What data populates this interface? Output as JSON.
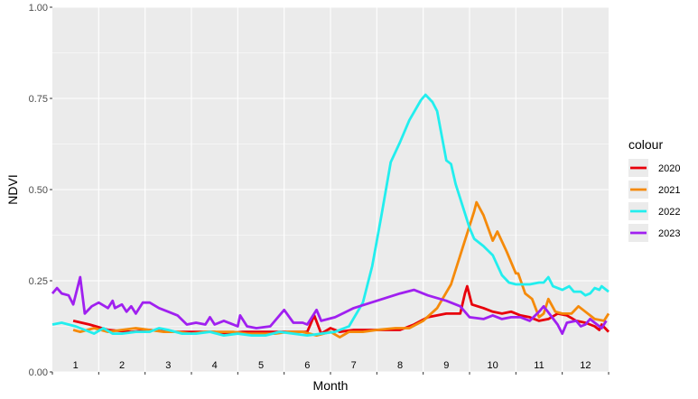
{
  "chart_data": {
    "type": "line",
    "xlabel": "Month",
    "ylabel": "NDVI",
    "ylim": [
      0,
      1
    ],
    "xlim": [
      0.5,
      12.5
    ],
    "x_ticks": [
      "1",
      "2",
      "3",
      "4",
      "5",
      "6",
      "7",
      "8",
      "9",
      "10",
      "11",
      "12"
    ],
    "y_ticks": [
      "0.00",
      "0.25",
      "0.50",
      "0.75",
      "1.00"
    ],
    "y_tick_values": [
      0,
      0.25,
      0.5,
      0.75,
      1.0
    ],
    "grid": true,
    "legend": {
      "title": "colour",
      "placement": "right"
    },
    "series": [
      {
        "name": "2020",
        "color": "#e8000b",
        "points": [
          [
            0.95,
            0.14
          ],
          [
            1.3,
            0.13
          ],
          [
            1.7,
            0.115
          ],
          [
            2.2,
            0.11
          ],
          [
            2.6,
            0.115
          ],
          [
            3.0,
            0.11
          ],
          [
            3.5,
            0.11
          ],
          [
            4.0,
            0.11
          ],
          [
            4.2,
            0.105
          ],
          [
            4.6,
            0.11
          ],
          [
            5.0,
            0.11
          ],
          [
            5.5,
            0.11
          ],
          [
            6.0,
            0.11
          ],
          [
            6.15,
            0.155
          ],
          [
            6.3,
            0.105
          ],
          [
            6.5,
            0.12
          ],
          [
            6.7,
            0.11
          ],
          [
            7.0,
            0.115
          ],
          [
            7.5,
            0.115
          ],
          [
            8.0,
            0.115
          ],
          [
            8.3,
            0.13
          ],
          [
            8.6,
            0.15
          ],
          [
            9.0,
            0.16
          ],
          [
            9.3,
            0.16
          ],
          [
            9.4,
            0.215
          ],
          [
            9.45,
            0.235
          ],
          [
            9.55,
            0.185
          ],
          [
            9.8,
            0.175
          ],
          [
            10.0,
            0.165
          ],
          [
            10.2,
            0.16
          ],
          [
            10.4,
            0.165
          ],
          [
            10.6,
            0.155
          ],
          [
            10.8,
            0.15
          ],
          [
            11.0,
            0.14
          ],
          [
            11.2,
            0.145
          ],
          [
            11.4,
            0.16
          ],
          [
            11.6,
            0.155
          ],
          [
            11.8,
            0.14
          ],
          [
            12.0,
            0.135
          ],
          [
            12.2,
            0.125
          ],
          [
            12.3,
            0.115
          ],
          [
            12.35,
            0.13
          ],
          [
            12.5,
            0.11
          ]
        ]
      },
      {
        "name": "2021",
        "color": "#f58a0a",
        "points": [
          [
            0.95,
            0.115
          ],
          [
            1.1,
            0.11
          ],
          [
            1.4,
            0.12
          ],
          [
            1.7,
            0.11
          ],
          [
            2.0,
            0.115
          ],
          [
            2.3,
            0.12
          ],
          [
            2.6,
            0.115
          ],
          [
            2.9,
            0.11
          ],
          [
            3.2,
            0.11
          ],
          [
            3.5,
            0.105
          ],
          [
            3.8,
            0.11
          ],
          [
            4.1,
            0.11
          ],
          [
            4.4,
            0.11
          ],
          [
            4.7,
            0.105
          ],
          [
            5.0,
            0.105
          ],
          [
            5.3,
            0.105
          ],
          [
            5.6,
            0.11
          ],
          [
            5.9,
            0.11
          ],
          [
            6.2,
            0.1
          ],
          [
            6.5,
            0.11
          ],
          [
            6.7,
            0.095
          ],
          [
            6.9,
            0.11
          ],
          [
            7.2,
            0.11
          ],
          [
            7.5,
            0.115
          ],
          [
            7.9,
            0.12
          ],
          [
            8.2,
            0.12
          ],
          [
            8.5,
            0.14
          ],
          [
            8.8,
            0.175
          ],
          [
            9.1,
            0.24
          ],
          [
            9.35,
            0.34
          ],
          [
            9.6,
            0.44
          ],
          [
            9.65,
            0.465
          ],
          [
            9.8,
            0.43
          ],
          [
            10.0,
            0.36
          ],
          [
            10.1,
            0.385
          ],
          [
            10.3,
            0.33
          ],
          [
            10.5,
            0.27
          ],
          [
            10.55,
            0.27
          ],
          [
            10.7,
            0.215
          ],
          [
            10.85,
            0.2
          ],
          [
            11.0,
            0.15
          ],
          [
            11.1,
            0.16
          ],
          [
            11.2,
            0.2
          ],
          [
            11.35,
            0.165
          ],
          [
            11.5,
            0.16
          ],
          [
            11.7,
            0.16
          ],
          [
            11.85,
            0.18
          ],
          [
            12.0,
            0.165
          ],
          [
            12.2,
            0.145
          ],
          [
            12.4,
            0.14
          ],
          [
            12.5,
            0.16
          ]
        ]
      },
      {
        "name": "2022",
        "color": "#22eeee",
        "points": [
          [
            0.5,
            0.13
          ],
          [
            0.7,
            0.135
          ],
          [
            1.0,
            0.125
          ],
          [
            1.2,
            0.115
          ],
          [
            1.4,
            0.105
          ],
          [
            1.6,
            0.12
          ],
          [
            1.8,
            0.105
          ],
          [
            2.0,
            0.105
          ],
          [
            2.3,
            0.11
          ],
          [
            2.6,
            0.11
          ],
          [
            2.8,
            0.12
          ],
          [
            3.0,
            0.115
          ],
          [
            3.3,
            0.105
          ],
          [
            3.6,
            0.105
          ],
          [
            3.9,
            0.11
          ],
          [
            4.2,
            0.1
          ],
          [
            4.5,
            0.105
          ],
          [
            4.8,
            0.1
          ],
          [
            5.1,
            0.1
          ],
          [
            5.4,
            0.11
          ],
          [
            5.7,
            0.105
          ],
          [
            6.0,
            0.1
          ],
          [
            6.3,
            0.105
          ],
          [
            6.6,
            0.11
          ],
          [
            6.9,
            0.125
          ],
          [
            7.2,
            0.19
          ],
          [
            7.4,
            0.29
          ],
          [
            7.6,
            0.43
          ],
          [
            7.8,
            0.575
          ],
          [
            8.0,
            0.63
          ],
          [
            8.2,
            0.69
          ],
          [
            8.45,
            0.745
          ],
          [
            8.55,
            0.76
          ],
          [
            8.7,
            0.74
          ],
          [
            8.8,
            0.715
          ],
          [
            9.0,
            0.58
          ],
          [
            9.1,
            0.57
          ],
          [
            9.2,
            0.515
          ],
          [
            9.5,
            0.395
          ],
          [
            9.6,
            0.365
          ],
          [
            9.8,
            0.345
          ],
          [
            10.0,
            0.32
          ],
          [
            10.2,
            0.265
          ],
          [
            10.35,
            0.245
          ],
          [
            10.5,
            0.24
          ],
          [
            10.8,
            0.24
          ],
          [
            11.0,
            0.245
          ],
          [
            11.1,
            0.245
          ],
          [
            11.2,
            0.26
          ],
          [
            11.3,
            0.235
          ],
          [
            11.5,
            0.225
          ],
          [
            11.65,
            0.235
          ],
          [
            11.75,
            0.22
          ],
          [
            11.9,
            0.22
          ],
          [
            12.0,
            0.21
          ],
          [
            12.1,
            0.215
          ],
          [
            12.2,
            0.23
          ],
          [
            12.3,
            0.225
          ],
          [
            12.35,
            0.235
          ],
          [
            12.5,
            0.22
          ]
        ]
      },
      {
        "name": "2023",
        "color": "#a020f0",
        "points": [
          [
            0.5,
            0.215
          ],
          [
            0.6,
            0.23
          ],
          [
            0.7,
            0.215
          ],
          [
            0.85,
            0.21
          ],
          [
            0.95,
            0.185
          ],
          [
            1.1,
            0.26
          ],
          [
            1.2,
            0.16
          ],
          [
            1.35,
            0.18
          ],
          [
            1.5,
            0.19
          ],
          [
            1.7,
            0.175
          ],
          [
            1.8,
            0.195
          ],
          [
            1.85,
            0.175
          ],
          [
            2.0,
            0.185
          ],
          [
            2.1,
            0.165
          ],
          [
            2.2,
            0.18
          ],
          [
            2.3,
            0.16
          ],
          [
            2.45,
            0.19
          ],
          [
            2.6,
            0.19
          ],
          [
            2.8,
            0.175
          ],
          [
            3.0,
            0.165
          ],
          [
            3.2,
            0.155
          ],
          [
            3.4,
            0.13
          ],
          [
            3.6,
            0.135
          ],
          [
            3.8,
            0.13
          ],
          [
            3.9,
            0.15
          ],
          [
            4.0,
            0.13
          ],
          [
            4.2,
            0.14
          ],
          [
            4.5,
            0.125
          ],
          [
            4.55,
            0.155
          ],
          [
            4.7,
            0.125
          ],
          [
            4.9,
            0.12
          ],
          [
            5.2,
            0.125
          ],
          [
            5.5,
            0.17
          ],
          [
            5.7,
            0.135
          ],
          [
            5.9,
            0.135
          ],
          [
            6.0,
            0.13
          ],
          [
            6.2,
            0.17
          ],
          [
            6.3,
            0.14
          ],
          [
            6.6,
            0.15
          ],
          [
            7.0,
            0.175
          ],
          [
            7.5,
            0.195
          ],
          [
            8.0,
            0.215
          ],
          [
            8.3,
            0.225
          ],
          [
            8.6,
            0.21
          ],
          [
            9.0,
            0.195
          ],
          [
            9.3,
            0.18
          ],
          [
            9.5,
            0.15
          ],
          [
            9.8,
            0.145
          ],
          [
            10.0,
            0.155
          ],
          [
            10.2,
            0.145
          ],
          [
            10.4,
            0.15
          ],
          [
            10.6,
            0.15
          ],
          [
            10.8,
            0.14
          ],
          [
            11.0,
            0.165
          ],
          [
            11.1,
            0.18
          ],
          [
            11.25,
            0.155
          ],
          [
            11.4,
            0.13
          ],
          [
            11.5,
            0.105
          ],
          [
            11.6,
            0.135
          ],
          [
            11.8,
            0.14
          ],
          [
            11.9,
            0.125
          ],
          [
            12.0,
            0.13
          ],
          [
            12.1,
            0.145
          ],
          [
            12.2,
            0.135
          ],
          [
            12.35,
            0.12
          ],
          [
            12.45,
            0.14
          ]
        ]
      }
    ]
  }
}
